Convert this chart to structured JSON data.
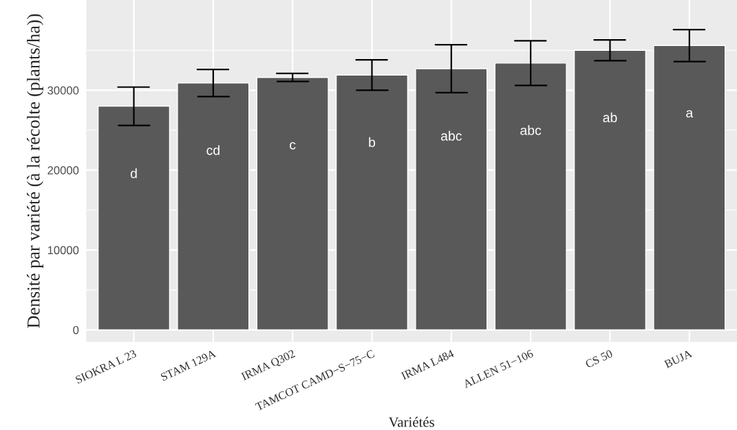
{
  "chart_data": {
    "type": "bar",
    "xlabel": "Variétés",
    "ylabel": "Densité par variété (à la récolte (plants/ha))",
    "categories": [
      "SIOKRA L 23",
      "STAM 129A",
      "IRMA Q302",
      "TAMCOT CAMD−S−75−C",
      "IRMA L484",
      "ALLEN 51−106",
      "CS 50",
      "BUJA"
    ],
    "values": [
      28000,
      30900,
      31600,
      31900,
      32700,
      33400,
      35000,
      35600
    ],
    "errors": [
      2400,
      1700,
      500,
      1900,
      3000,
      2800,
      1300,
      2000
    ],
    "color": "#595959",
    "ylim": [
      -1500,
      41300
    ],
    "yticks": [
      0,
      10000,
      20000,
      30000
    ],
    "grid": true,
    "annotations": [
      "d",
      "cd",
      "c",
      "b",
      "abc",
      "abc",
      "ab",
      "a"
    ]
  }
}
